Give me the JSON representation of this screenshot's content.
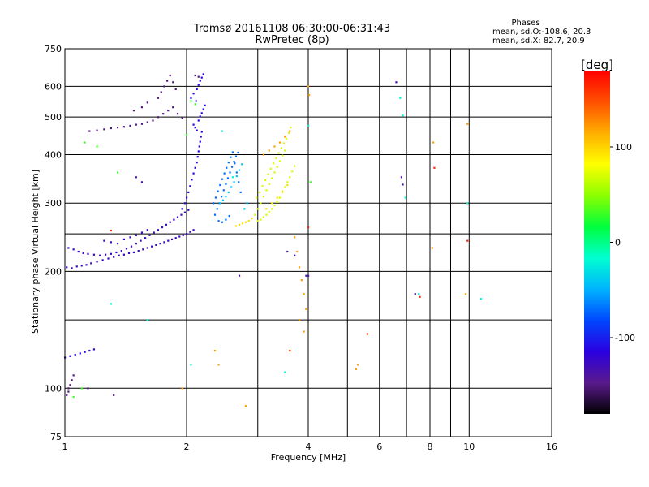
{
  "header": {
    "title": "Tromsø 20161108 06:30:00-06:31:43",
    "subtitle": "RwPretec (8p)",
    "stats_heading": "Phases",
    "stats_o": "mean, sd,O:-108.6, 20.3",
    "stats_x": "mean, sd,X:  82.7, 20.9"
  },
  "chart_data": {
    "type": "scatter",
    "title": "Tromsø 20161108 06:30:00-06:31:43",
    "subtitle": "RwPretec (8p)",
    "xlabel": "Frequency [MHz]",
    "ylabel": "Stationary phase Virtual Height [km]",
    "x_scale": "log",
    "y_scale": "log",
    "xlim": [
      1,
      16
    ],
    "ylim": [
      75,
      750
    ],
    "x_ticks": [
      1,
      2,
      4,
      6,
      8,
      10,
      16
    ],
    "x_ticks_minor": [
      3,
      5,
      7,
      9
    ],
    "y_ticks": [
      75,
      100,
      200,
      300,
      400,
      500,
      600,
      750
    ],
    "y_ticks_minor": [
      150,
      250
    ],
    "grid": true,
    "colorbar": {
      "label": "[deg]",
      "range": [
        -180,
        180
      ],
      "ticks": [
        -100,
        0,
        100
      ],
      "colormap": [
        "#000000",
        "#5a1a8c",
        "#2a00e0",
        "#0047ff",
        "#00b4ff",
        "#00ffd0",
        "#00ff3c",
        "#8cff00",
        "#ffff00",
        "#ffae00",
        "#ff5000",
        "#ff0000"
      ]
    },
    "series": [
      {
        "color_phase": -125,
        "points": [
          [
            1.01,
            205
          ],
          [
            1.04,
            204
          ],
          [
            1.07,
            206
          ],
          [
            1.1,
            207
          ],
          [
            1.13,
            208
          ],
          [
            1.16,
            210
          ],
          [
            1.2,
            212
          ],
          [
            1.24,
            214
          ],
          [
            1.28,
            216
          ],
          [
            1.32,
            218
          ],
          [
            1.36,
            220
          ],
          [
            1.4,
            221
          ],
          [
            1.44,
            223
          ],
          [
            1.48,
            224
          ],
          [
            1.52,
            226
          ],
          [
            1.56,
            228
          ],
          [
            1.6,
            230
          ],
          [
            1.64,
            232
          ],
          [
            1.68,
            234
          ],
          [
            1.72,
            236
          ],
          [
            1.76,
            238
          ],
          [
            1.8,
            240
          ],
          [
            1.84,
            242
          ],
          [
            1.88,
            244
          ],
          [
            1.92,
            246
          ],
          [
            1.96,
            248
          ],
          [
            2.0,
            250
          ],
          [
            2.04,
            253
          ],
          [
            2.08,
            256
          ],
          [
            1.02,
            230
          ],
          [
            1.05,
            228
          ],
          [
            1.08,
            225
          ],
          [
            1.11,
            223
          ],
          [
            1.14,
            222
          ],
          [
            1.18,
            221
          ],
          [
            1.22,
            220
          ],
          [
            1.26,
            221
          ],
          [
            1.3,
            222
          ],
          [
            1.34,
            224
          ],
          [
            1.38,
            226
          ],
          [
            1.42,
            229
          ],
          [
            1.46,
            232
          ],
          [
            1.5,
            236
          ],
          [
            1.54,
            240
          ],
          [
            1.58,
            244
          ],
          [
            1.62,
            248
          ],
          [
            1.66,
            252
          ],
          [
            1.7,
            256
          ],
          [
            1.74,
            260
          ],
          [
            1.78,
            264
          ],
          [
            1.82,
            268
          ],
          [
            1.86,
            272
          ],
          [
            1.9,
            276
          ],
          [
            1.94,
            280
          ],
          [
            1.98,
            284
          ],
          [
            2.02,
            288
          ],
          [
            1.25,
            240
          ],
          [
            1.3,
            238
          ],
          [
            1.35,
            236
          ],
          [
            1.4,
            242
          ],
          [
            1.45,
            245
          ],
          [
            1.5,
            248
          ],
          [
            1.55,
            252
          ],
          [
            1.6,
            256
          ]
        ]
      },
      {
        "color_phase": -112,
        "points": [
          [
            1.95,
            290
          ],
          [
            1.98,
            300
          ],
          [
            2.0,
            310
          ],
          [
            2.02,
            320
          ],
          [
            2.04,
            332
          ],
          [
            2.06,
            345
          ],
          [
            2.08,
            358
          ],
          [
            2.1,
            370
          ],
          [
            2.12,
            382
          ],
          [
            2.13,
            395
          ],
          [
            2.14,
            408
          ],
          [
            2.15,
            420
          ],
          [
            2.16,
            432
          ],
          [
            2.17,
            445
          ],
          [
            2.18,
            458
          ],
          [
            2.12,
            462
          ],
          [
            2.1,
            470
          ],
          [
            2.08,
            478
          ],
          [
            2.14,
            490
          ],
          [
            2.16,
            502
          ],
          [
            2.18,
            512
          ],
          [
            2.2,
            524
          ],
          [
            2.22,
            536
          ],
          [
            2.11,
            550
          ],
          [
            2.05,
            560
          ],
          [
            2.08,
            575
          ],
          [
            2.12,
            590
          ],
          [
            2.14,
            605
          ],
          [
            2.16,
            620
          ],
          [
            2.18,
            632
          ],
          [
            2.2,
            645
          ],
          [
            1.0,
            120
          ],
          [
            1.03,
            121
          ],
          [
            1.06,
            122
          ],
          [
            1.09,
            123
          ],
          [
            1.12,
            124
          ],
          [
            1.15,
            125
          ],
          [
            1.18,
            126
          ]
        ]
      },
      {
        "color_phase": -150,
        "points": [
          [
            1.02,
            100
          ],
          [
            1.03,
            102
          ],
          [
            1.04,
            105
          ],
          [
            1.05,
            108
          ],
          [
            1.01,
            96
          ],
          [
            1.02,
            98
          ],
          [
            1.14,
            100
          ],
          [
            1.32,
            96
          ],
          [
            1.15,
            460
          ],
          [
            1.2,
            462
          ],
          [
            1.25,
            465
          ],
          [
            1.3,
            468
          ],
          [
            1.35,
            470
          ],
          [
            1.4,
            472
          ],
          [
            1.45,
            475
          ],
          [
            1.5,
            478
          ],
          [
            1.55,
            480
          ],
          [
            1.6,
            485
          ],
          [
            1.65,
            490
          ],
          [
            1.7,
            500
          ],
          [
            1.75,
            510
          ],
          [
            1.8,
            520
          ],
          [
            1.85,
            530
          ],
          [
            1.9,
            510
          ],
          [
            1.95,
            498
          ],
          [
            1.7,
            560
          ],
          [
            1.73,
            580
          ],
          [
            1.76,
            600
          ],
          [
            1.79,
            620
          ],
          [
            1.82,
            640
          ],
          [
            1.85,
            615
          ],
          [
            1.88,
            590
          ],
          [
            2.1,
            640
          ],
          [
            2.14,
            635
          ],
          [
            1.55,
            530
          ],
          [
            1.6,
            545
          ],
          [
            1.48,
            520
          ]
        ]
      },
      {
        "color_phase": -70,
        "points": [
          [
            2.35,
            280
          ],
          [
            2.38,
            290
          ],
          [
            2.41,
            300
          ],
          [
            2.44,
            312
          ],
          [
            2.47,
            324
          ],
          [
            2.5,
            336
          ],
          [
            2.53,
            348
          ],
          [
            2.56,
            360
          ],
          [
            2.59,
            372
          ],
          [
            2.62,
            384
          ],
          [
            2.65,
            396
          ],
          [
            2.68,
            405
          ],
          [
            2.33,
            300
          ],
          [
            2.36,
            310
          ],
          [
            2.39,
            322
          ],
          [
            2.42,
            334
          ],
          [
            2.45,
            346
          ],
          [
            2.48,
            358
          ],
          [
            2.51,
            370
          ],
          [
            2.54,
            382
          ],
          [
            2.57,
            394
          ],
          [
            2.6,
            406
          ],
          [
            2.63,
            380
          ],
          [
            2.66,
            360
          ],
          [
            2.69,
            340
          ],
          [
            2.72,
            320
          ],
          [
            2.4,
            270
          ],
          [
            2.45,
            268
          ],
          [
            2.5,
            272
          ],
          [
            2.55,
            278
          ]
        ]
      },
      {
        "color_phase": -40,
        "points": [
          [
            2.42,
            300
          ],
          [
            2.46,
            305
          ],
          [
            2.5,
            312
          ],
          [
            2.54,
            320
          ],
          [
            2.58,
            330
          ],
          [
            2.62,
            340
          ],
          [
            2.66,
            352
          ],
          [
            2.7,
            365
          ],
          [
            2.74,
            378
          ],
          [
            2.78,
            290
          ],
          [
            2.82,
            300
          ]
        ]
      },
      {
        "color_phase": 70,
        "points": [
          [
            2.95,
            280
          ],
          [
            3.0,
            290
          ],
          [
            3.05,
            300
          ],
          [
            3.1,
            312
          ],
          [
            3.15,
            324
          ],
          [
            3.2,
            336
          ],
          [
            3.25,
            348
          ],
          [
            3.3,
            360
          ],
          [
            3.35,
            372
          ],
          [
            3.4,
            385
          ],
          [
            3.45,
            398
          ],
          [
            3.5,
            410
          ],
          [
            2.98,
            310
          ],
          [
            3.03,
            320
          ],
          [
            3.08,
            332
          ],
          [
            3.13,
            344
          ],
          [
            3.18,
            356
          ],
          [
            3.23,
            368
          ],
          [
            3.28,
            380
          ],
          [
            3.33,
            392
          ],
          [
            3.38,
            404
          ],
          [
            3.43,
            416
          ],
          [
            3.48,
            428
          ],
          [
            3.53,
            440
          ],
          [
            3.58,
            455
          ],
          [
            3.62,
            470
          ],
          [
            3.0,
            270
          ],
          [
            3.05,
            272
          ],
          [
            3.1,
            276
          ],
          [
            3.15,
            280
          ],
          [
            3.2,
            285
          ],
          [
            3.25,
            290
          ],
          [
            3.3,
            296
          ],
          [
            3.35,
            302
          ],
          [
            3.4,
            310
          ],
          [
            3.45,
            320
          ],
          [
            3.5,
            330
          ],
          [
            3.55,
            340
          ],
          [
            3.6,
            350
          ],
          [
            3.65,
            362
          ],
          [
            3.7,
            374
          ]
        ]
      },
      {
        "color_phase": 95,
        "points": [
          [
            2.65,
            262
          ],
          [
            2.7,
            264
          ],
          [
            2.75,
            266
          ],
          [
            2.8,
            268
          ],
          [
            2.85,
            270
          ],
          [
            2.9,
            274
          ],
          [
            3.15,
            290
          ],
          [
            3.25,
            300
          ],
          [
            3.35,
            310
          ],
          [
            3.45,
            322
          ],
          [
            3.55,
            334
          ]
        ]
      },
      {
        "color_phase": 120,
        "points": [
          [
            3.1,
            400
          ],
          [
            3.2,
            410
          ],
          [
            3.3,
            420
          ],
          [
            3.4,
            430
          ],
          [
            3.5,
            445
          ],
          [
            3.6,
            460
          ],
          [
            3.7,
            245
          ],
          [
            3.75,
            225
          ],
          [
            3.8,
            205
          ],
          [
            3.85,
            190
          ],
          [
            3.9,
            175
          ],
          [
            3.95,
            160
          ],
          [
            3.8,
            150
          ],
          [
            3.9,
            140
          ],
          [
            4.0,
            600
          ],
          [
            4.02,
            570
          ],
          [
            5.3,
            115
          ],
          [
            5.25,
            112
          ],
          [
            8.15,
            430
          ],
          [
            8.1,
            230
          ],
          [
            9.9,
            480
          ],
          [
            9.8,
            175
          ],
          [
            1.95,
            100
          ],
          [
            2.35,
            125
          ],
          [
            2.4,
            115
          ],
          [
            2.8,
            90
          ]
        ]
      },
      {
        "color_phase": -20,
        "points": [
          [
            2.45,
            460
          ],
          [
            2.6,
            350
          ],
          [
            6.75,
            560
          ],
          [
            6.85,
            505
          ],
          [
            6.95,
            310
          ],
          [
            7.5,
            175
          ],
          [
            9.9,
            300
          ],
          [
            10.7,
            170
          ],
          [
            1.3,
            165
          ],
          [
            1.6,
            150
          ],
          [
            2.05,
            115
          ],
          [
            3.5,
            110
          ],
          [
            4.0,
            475
          ]
        ]
      },
      {
        "color_phase": -135,
        "points": [
          [
            6.6,
            615
          ],
          [
            6.8,
            350
          ],
          [
            6.85,
            335
          ],
          [
            7.35,
            175
          ],
          [
            3.95,
            195
          ],
          [
            4.0,
            195
          ],
          [
            3.55,
            225
          ],
          [
            3.7,
            220
          ],
          [
            2.7,
            195
          ],
          [
            1.5,
            350
          ],
          [
            1.55,
            340
          ]
        ]
      },
      {
        "color_phase": 165,
        "points": [
          [
            5.6,
            138
          ],
          [
            7.55,
            172
          ],
          [
            8.2,
            370
          ],
          [
            9.9,
            240
          ],
          [
            1.3,
            255
          ],
          [
            4.0,
            260
          ],
          [
            3.6,
            125
          ]
        ]
      },
      {
        "color_phase": 30,
        "points": [
          [
            1.05,
            95
          ],
          [
            1.1,
            100
          ],
          [
            1.12,
            430
          ],
          [
            1.2,
            420
          ],
          [
            2.0,
            450
          ],
          [
            2.05,
            550
          ],
          [
            2.1,
            540
          ],
          [
            1.35,
            360
          ],
          [
            4.05,
            340
          ]
        ]
      }
    ]
  }
}
